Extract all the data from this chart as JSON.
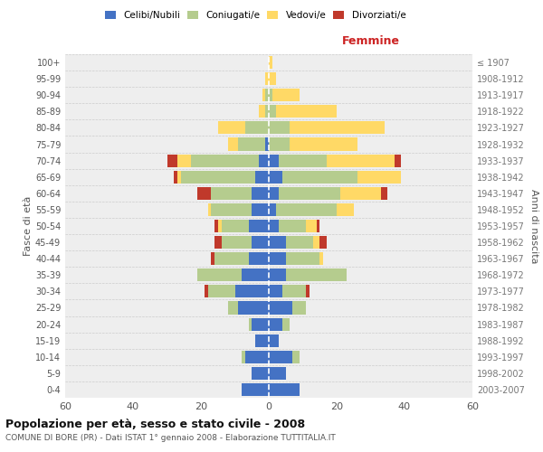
{
  "age_groups": [
    "0-4",
    "5-9",
    "10-14",
    "15-19",
    "20-24",
    "25-29",
    "30-34",
    "35-39",
    "40-44",
    "45-49",
    "50-54",
    "55-59",
    "60-64",
    "65-69",
    "70-74",
    "75-79",
    "80-84",
    "85-89",
    "90-94",
    "95-99",
    "100+"
  ],
  "birth_years": [
    "2003-2007",
    "1998-2002",
    "1993-1997",
    "1988-1992",
    "1983-1987",
    "1978-1982",
    "1973-1977",
    "1968-1972",
    "1963-1967",
    "1958-1962",
    "1953-1957",
    "1948-1952",
    "1943-1947",
    "1938-1942",
    "1933-1937",
    "1928-1932",
    "1923-1927",
    "1918-1922",
    "1913-1917",
    "1908-1912",
    "≤ 1907"
  ],
  "males": {
    "celibi": [
      8,
      5,
      7,
      4,
      5,
      9,
      10,
      8,
      6,
      5,
      6,
      5,
      5,
      4,
      3,
      1,
      0,
      0,
      0,
      0,
      0
    ],
    "coniugati": [
      0,
      0,
      1,
      0,
      1,
      3,
      8,
      13,
      10,
      9,
      8,
      12,
      12,
      22,
      20,
      8,
      7,
      1,
      1,
      0,
      0
    ],
    "vedovi": [
      0,
      0,
      0,
      0,
      0,
      0,
      0,
      0,
      0,
      0,
      1,
      1,
      0,
      1,
      4,
      3,
      8,
      2,
      1,
      1,
      0
    ],
    "divorziati": [
      0,
      0,
      0,
      0,
      0,
      0,
      1,
      0,
      1,
      2,
      1,
      0,
      4,
      1,
      3,
      0,
      0,
      0,
      0,
      0,
      0
    ]
  },
  "females": {
    "nubili": [
      9,
      5,
      7,
      3,
      4,
      7,
      4,
      5,
      5,
      5,
      3,
      2,
      3,
      4,
      3,
      0,
      0,
      0,
      0,
      0,
      0
    ],
    "coniugate": [
      0,
      0,
      2,
      0,
      2,
      4,
      7,
      18,
      10,
      8,
      8,
      18,
      18,
      22,
      14,
      6,
      6,
      2,
      1,
      0,
      0
    ],
    "vedove": [
      0,
      0,
      0,
      0,
      0,
      0,
      0,
      0,
      1,
      2,
      3,
      5,
      12,
      13,
      20,
      20,
      28,
      18,
      8,
      2,
      1
    ],
    "divorziate": [
      0,
      0,
      0,
      0,
      0,
      0,
      1,
      0,
      0,
      2,
      1,
      0,
      2,
      0,
      2,
      0,
      0,
      0,
      0,
      0,
      0
    ]
  },
  "colors": {
    "celibi_nubili": "#4472C4",
    "coniugati": "#B5CC8E",
    "vedovi": "#FFD966",
    "divorziati": "#C0392B"
  },
  "xlim": 60,
  "title": "Popolazione per età, sesso e stato civile - 2008",
  "subtitle": "COMUNE DI BORE (PR) - Dati ISTAT 1° gennaio 2008 - Elaborazione TUTTITALIA.IT",
  "ylabel_left": "Fasce di età",
  "ylabel_right": "Anni di nascita",
  "xlabel_right": "Femmine"
}
